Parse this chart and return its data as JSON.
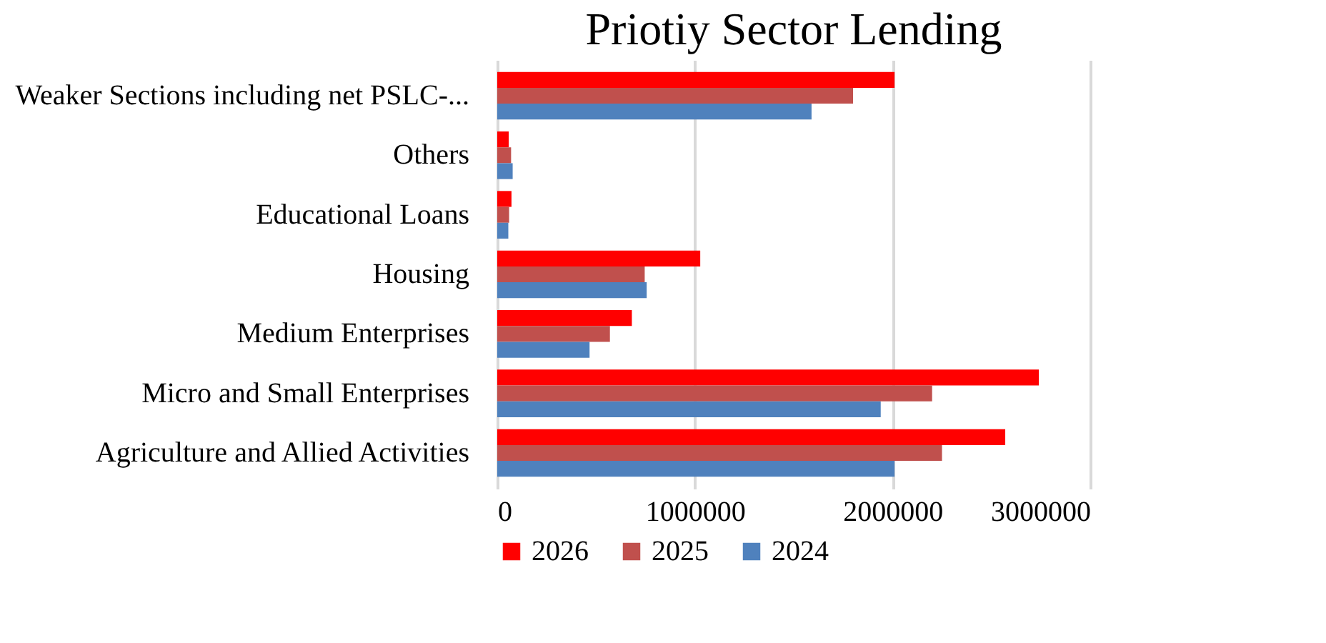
{
  "chart_data": {
    "type": "bar",
    "orientation": "horizontal",
    "title": "Priotiy Sector Lending",
    "categories": [
      "Weaker Sections including net PSLC-...",
      "Others",
      "Educational Loans",
      "Housing",
      "Medium Enterprises",
      "Micro and Small Enterprises",
      "Agriculture and Allied Activities"
    ],
    "series": [
      {
        "name": "2026",
        "color": "#ff0000",
        "values": [
          2010000,
          58000,
          72000,
          1027000,
          681000,
          2740000,
          2570000
        ]
      },
      {
        "name": "2025",
        "color": "#c0504d",
        "values": [
          1800000,
          70000,
          60000,
          746000,
          570000,
          2200000,
          2250000
        ]
      },
      {
        "name": "2024",
        "color": "#4f81bd",
        "values": [
          1590000,
          78000,
          56000,
          756000,
          467000,
          1940000,
          2010000
        ]
      }
    ],
    "xlim": [
      0,
      3000000
    ],
    "xticks": [
      0,
      1000000,
      2000000,
      3000000
    ],
    "grid": "x",
    "legend": "bottom"
  }
}
